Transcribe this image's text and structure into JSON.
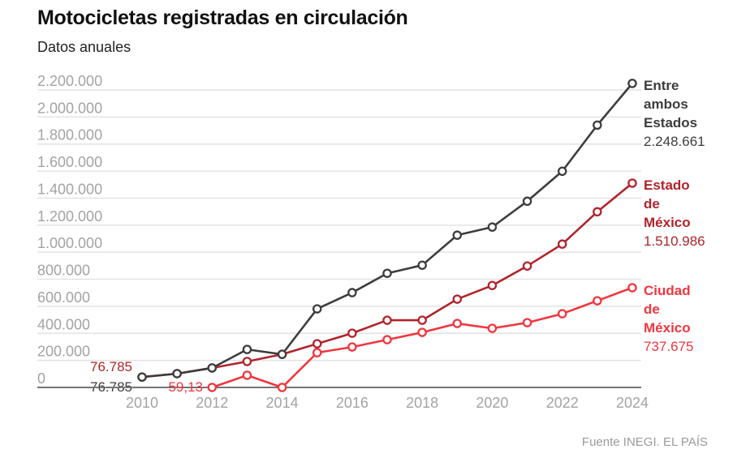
{
  "header": {
    "title": "Motocicletas registradas en circulación",
    "subtitle": "Datos anuales"
  },
  "source": "Fuente INEGI. EL PAÍS",
  "chart_data": {
    "type": "line",
    "title": "Motocicletas registradas en circulación",
    "subtitle": "Datos anuales",
    "xlabel": "",
    "ylabel": "",
    "x": [
      2010,
      2011,
      2012,
      2013,
      2014,
      2015,
      2016,
      2017,
      2018,
      2019,
      2020,
      2021,
      2022,
      2023,
      2024
    ],
    "x_tick_labels": [
      "2010",
      "2012",
      "2014",
      "2016",
      "2018",
      "2020",
      "2022",
      "2024"
    ],
    "x_ticks": [
      2010,
      2012,
      2014,
      2016,
      2018,
      2020,
      2022,
      2024
    ],
    "ylim": [
      0,
      2200000
    ],
    "y_ticks": [
      0,
      200000,
      400000,
      600000,
      800000,
      1000000,
      1200000,
      1400000,
      1600000,
      1800000,
      2000000,
      2200000
    ],
    "y_tick_labels": [
      "0",
      "200.000",
      "400.000",
      "600.000",
      "800.000",
      "1.000.000",
      "1.200.000",
      "1.400.000",
      "1.600.000",
      "1.800.000",
      "2.000.000",
      "2.200.000"
    ],
    "grid": true,
    "legend": "end-of-line labels (right)",
    "series": [
      {
        "name": "Entre ambos Estados",
        "label_lines": [
          "Entre",
          "ambos",
          "Estados"
        ],
        "color": "#3d3d3d",
        "start_label": "76.785",
        "end_label": "2.248.661",
        "x": [
          2010,
          2011,
          2012,
          2013,
          2014,
          2015,
          2016,
          2017,
          2018,
          2019,
          2020,
          2021,
          2022,
          2023,
          2024
        ],
        "values": [
          76785,
          102000,
          144000,
          281000,
          245000,
          581000,
          701000,
          844000,
          904000,
          1126000,
          1186000,
          1377000,
          1599000,
          1940000,
          2248661
        ]
      },
      {
        "name": "Estado de México",
        "label_lines": [
          "Estado",
          "de",
          "México"
        ],
        "color": "#b0242b",
        "start_label": "76.785",
        "end_label": "1.510.986",
        "x": [
          2010,
          2011,
          2012,
          2013,
          2014,
          2015,
          2016,
          2017,
          2018,
          2019,
          2020,
          2021,
          2022,
          2023,
          2024
        ],
        "values": [
          76785,
          102000,
          144000,
          192000,
          245000,
          323000,
          401000,
          497000,
          497000,
          653000,
          754000,
          898000,
          1060000,
          1299000,
          1510986
        ]
      },
      {
        "name": "Ciudad de México",
        "label_lines": [
          "Ciudad",
          "de",
          "México"
        ],
        "color": "#f0363f",
        "start_label": "59,13",
        "end_label": "737.675",
        "x": [
          2012,
          2013,
          2014,
          2015,
          2016,
          2017,
          2018,
          2019,
          2020,
          2021,
          2022,
          2023,
          2024
        ],
        "values": [
          59.13,
          90000,
          0,
          257000,
          299000,
          353000,
          407000,
          473000,
          437000,
          479000,
          545000,
          641000,
          737675
        ]
      }
    ]
  }
}
